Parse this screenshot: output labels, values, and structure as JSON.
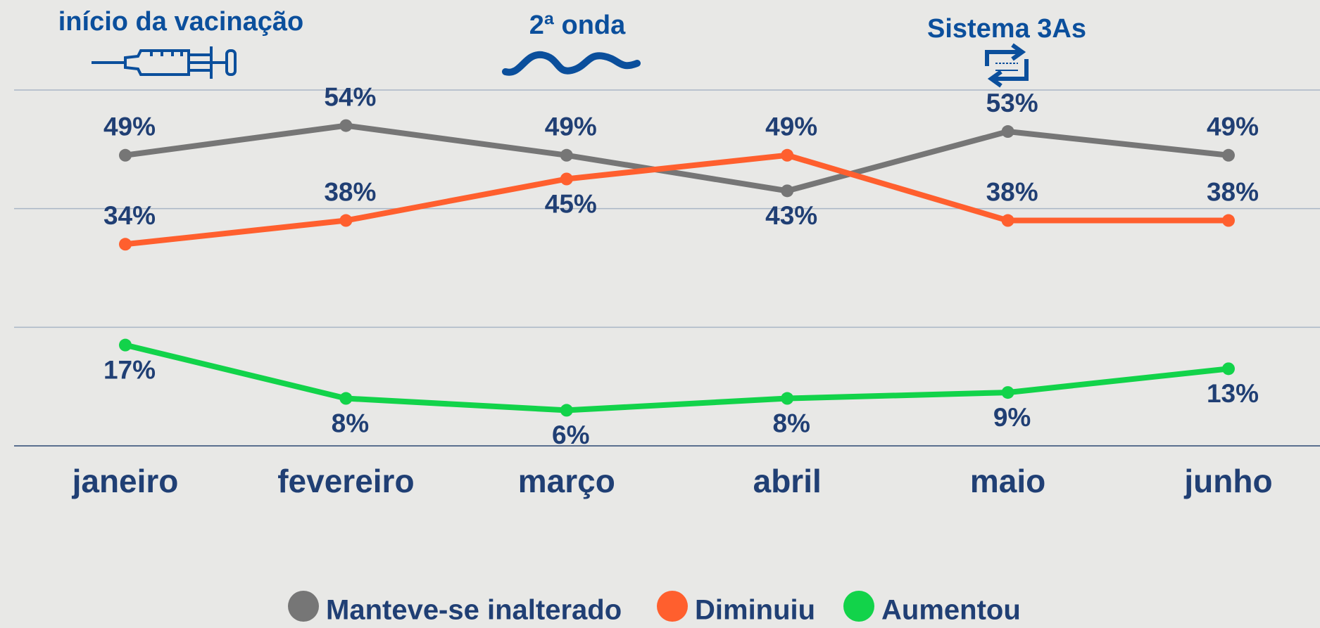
{
  "chart_data": {
    "type": "line",
    "annotations": [
      "início da vacinação",
      "2ª onda",
      "Sistema 3As"
    ],
    "categories": [
      "janeiro",
      "fevereiro",
      "março",
      "abril",
      "maio",
      "junho"
    ],
    "ylim": [
      0,
      60
    ],
    "yticks": [
      0,
      20,
      40,
      60
    ],
    "grid": true,
    "legend": "bottom",
    "series": [
      {
        "name": "Manteve-se inalterado",
        "color": "#767676",
        "values": [
          49,
          54,
          49,
          43,
          53,
          49
        ],
        "value_labels": [
          "49%",
          "54%",
          "49%",
          "43%",
          "53%",
          "49%"
        ]
      },
      {
        "name": "Diminuiu",
        "color": "#ff5f2e",
        "values": [
          34,
          38,
          45,
          49,
          38,
          38
        ],
        "value_labels": [
          "34%",
          "38%",
          "45%",
          "49%",
          "38%",
          "38%"
        ]
      },
      {
        "name": "Aumentou",
        "color": "#12d34a",
        "values": [
          17,
          8,
          6,
          8,
          9,
          13
        ],
        "value_labels": [
          "17%",
          "8%",
          "6%",
          "8%",
          "9%",
          "13%"
        ]
      }
    ]
  }
}
